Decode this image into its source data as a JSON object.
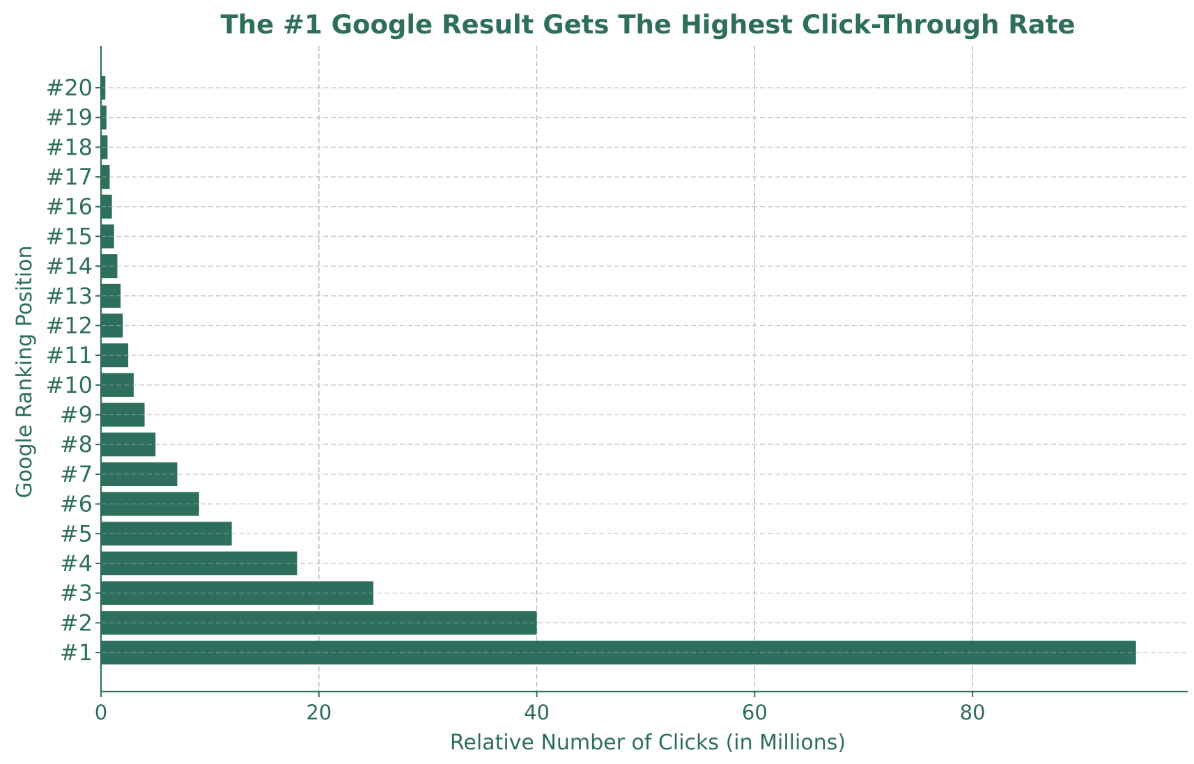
{
  "colors": {
    "accent": "#2e6e5c",
    "grid": "#9bbcb2",
    "grid_y": "#c8c8c8",
    "background": "#ffffff"
  },
  "chart_data": {
    "type": "bar",
    "orientation": "horizontal",
    "title": "The #1 Google Result Gets The Highest Click-Through Rate",
    "xlabel": "Relative Number of Clicks (in Millions)",
    "ylabel": "Google Ranking Position",
    "categories": [
      "#1",
      "#2",
      "#3",
      "#4",
      "#5",
      "#6",
      "#7",
      "#8",
      "#9",
      "#10",
      "#11",
      "#12",
      "#13",
      "#14",
      "#15",
      "#16",
      "#17",
      "#18",
      "#19",
      "#20"
    ],
    "values": [
      95,
      40,
      25,
      18,
      12,
      9,
      7,
      5,
      4,
      3,
      2.5,
      2,
      1.8,
      1.5,
      1.2,
      1,
      0.8,
      0.6,
      0.5,
      0.4
    ],
    "xlim": [
      0,
      99.75
    ],
    "xticks": [
      0,
      20,
      40,
      60,
      80
    ],
    "grid": true,
    "grid_style": "dashed"
  }
}
